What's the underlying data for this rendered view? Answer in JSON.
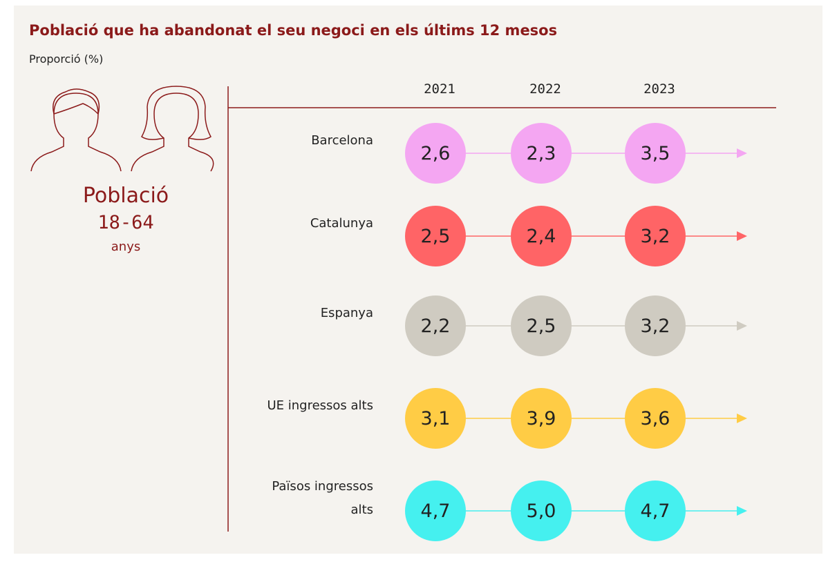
{
  "chart_data": {
    "type": "dot-table",
    "title": "Població que ha abandonat el seu negoci en els últims 12 mesos",
    "subtitle": "Proporció (%)",
    "population": {
      "label": "Població",
      "range": "18-64",
      "unit": "anys"
    },
    "categories": [
      "2021",
      "2022",
      "2023"
    ],
    "series": [
      {
        "name": "Barcelona",
        "color": "#f4a6f2",
        "values": [
          2.6,
          2.3,
          3.5
        ],
        "value_labels": [
          "2,6",
          "2,3",
          "3,5"
        ]
      },
      {
        "name": "Catalunya",
        "color": "#ff6466",
        "values": [
          2.5,
          2.4,
          3.2
        ],
        "value_labels": [
          "2,5",
          "2,4",
          "3,2"
        ]
      },
      {
        "name": "Espanya",
        "color": "#cfcbc1",
        "values": [
          2.2,
          2.5,
          3.2
        ],
        "value_labels": [
          "2,2",
          "2,5",
          "3,2"
        ]
      },
      {
        "name": "UE ingressos alts",
        "color": "#ffcc45",
        "values": [
          3.1,
          3.9,
          3.6
        ],
        "value_labels": [
          "3,1",
          "3,9",
          "3,6"
        ]
      },
      {
        "name": "Països ingressos alts",
        "color": "#45f0ef",
        "values": [
          4.7,
          5.0,
          4.7
        ],
        "value_labels": [
          "4,7",
          "5,0",
          "4,7"
        ]
      }
    ]
  }
}
